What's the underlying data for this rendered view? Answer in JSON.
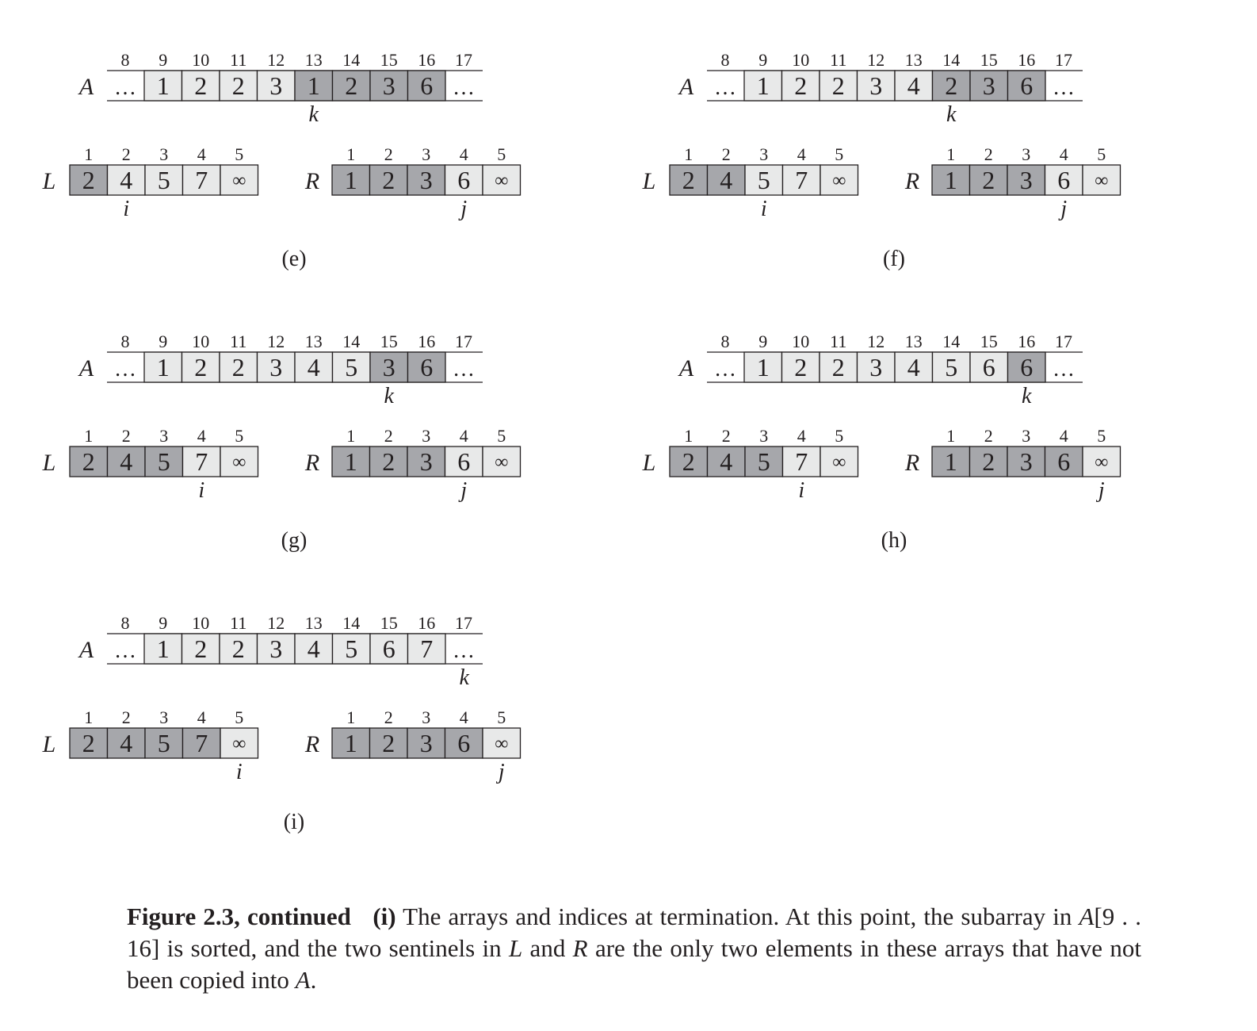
{
  "colors": {
    "dark": "#a6a7ab",
    "light": "#e8e9e9",
    "stroke": "#231f20",
    "text": "#231f20"
  },
  "panels": [
    {
      "label": "(e)",
      "a_indices": [
        "8",
        "9",
        "10",
        "11",
        "12",
        "13",
        "14",
        "15",
        "16",
        "17"
      ],
      "a_values": [
        "1",
        "2",
        "2",
        "3",
        "1",
        "2",
        "3",
        "6"
      ],
      "a_shade": [
        "light",
        "light",
        "light",
        "light",
        "dark",
        "dark",
        "dark",
        "dark"
      ],
      "l_indices": [
        "1",
        "2",
        "3",
        "4",
        "5"
      ],
      "l_values": [
        "2",
        "4",
        "5",
        "7",
        "∞"
      ],
      "l_shade": [
        "dark",
        "light",
        "light",
        "light",
        "light"
      ],
      "r_indices": [
        "1",
        "2",
        "3",
        "4",
        "5"
      ],
      "r_values": [
        "1",
        "2",
        "3",
        "6",
        "∞"
      ],
      "r_shade": [
        "dark",
        "dark",
        "dark",
        "light",
        "light"
      ],
      "k_pos": 4,
      "i_pos": 1,
      "j_pos": 3
    },
    {
      "label": "(f)",
      "a_indices": [
        "8",
        "9",
        "10",
        "11",
        "12",
        "13",
        "14",
        "15",
        "16",
        "17"
      ],
      "a_values": [
        "1",
        "2",
        "2",
        "3",
        "4",
        "2",
        "3",
        "6"
      ],
      "a_shade": [
        "light",
        "light",
        "light",
        "light",
        "light",
        "dark",
        "dark",
        "dark"
      ],
      "l_indices": [
        "1",
        "2",
        "3",
        "4",
        "5"
      ],
      "l_values": [
        "2",
        "4",
        "5",
        "7",
        "∞"
      ],
      "l_shade": [
        "dark",
        "dark",
        "light",
        "light",
        "light"
      ],
      "r_indices": [
        "1",
        "2",
        "3",
        "4",
        "5"
      ],
      "r_values": [
        "1",
        "2",
        "3",
        "6",
        "∞"
      ],
      "r_shade": [
        "dark",
        "dark",
        "dark",
        "light",
        "light"
      ],
      "k_pos": 5,
      "i_pos": 2,
      "j_pos": 3
    },
    {
      "label": "(g)",
      "a_indices": [
        "8",
        "9",
        "10",
        "11",
        "12",
        "13",
        "14",
        "15",
        "16",
        "17"
      ],
      "a_values": [
        "1",
        "2",
        "2",
        "3",
        "4",
        "5",
        "3",
        "6"
      ],
      "a_shade": [
        "light",
        "light",
        "light",
        "light",
        "light",
        "light",
        "dark",
        "dark"
      ],
      "l_indices": [
        "1",
        "2",
        "3",
        "4",
        "5"
      ],
      "l_values": [
        "2",
        "4",
        "5",
        "7",
        "∞"
      ],
      "l_shade": [
        "dark",
        "dark",
        "dark",
        "light",
        "light"
      ],
      "r_indices": [
        "1",
        "2",
        "3",
        "4",
        "5"
      ],
      "r_values": [
        "1",
        "2",
        "3",
        "6",
        "∞"
      ],
      "r_shade": [
        "dark",
        "dark",
        "dark",
        "light",
        "light"
      ],
      "k_pos": 6,
      "i_pos": 3,
      "j_pos": 3
    },
    {
      "label": "(h)",
      "a_indices": [
        "8",
        "9",
        "10",
        "11",
        "12",
        "13",
        "14",
        "15",
        "16",
        "17"
      ],
      "a_values": [
        "1",
        "2",
        "2",
        "3",
        "4",
        "5",
        "6",
        "6"
      ],
      "a_shade": [
        "light",
        "light",
        "light",
        "light",
        "light",
        "light",
        "light",
        "dark"
      ],
      "l_indices": [
        "1",
        "2",
        "3",
        "4",
        "5"
      ],
      "l_values": [
        "2",
        "4",
        "5",
        "7",
        "∞"
      ],
      "l_shade": [
        "dark",
        "dark",
        "dark",
        "light",
        "light"
      ],
      "r_indices": [
        "1",
        "2",
        "3",
        "4",
        "5"
      ],
      "r_values": [
        "1",
        "2",
        "3",
        "6",
        "∞"
      ],
      "r_shade": [
        "dark",
        "dark",
        "dark",
        "dark",
        "light"
      ],
      "k_pos": 7,
      "i_pos": 3,
      "j_pos": 4
    },
    {
      "label": "(i)",
      "a_indices": [
        "8",
        "9",
        "10",
        "11",
        "12",
        "13",
        "14",
        "15",
        "16",
        "17"
      ],
      "a_values": [
        "1",
        "2",
        "2",
        "3",
        "4",
        "5",
        "6",
        "7"
      ],
      "a_shade": [
        "light",
        "light",
        "light",
        "light",
        "light",
        "light",
        "light",
        "light"
      ],
      "l_indices": [
        "1",
        "2",
        "3",
        "4",
        "5"
      ],
      "l_values": [
        "2",
        "4",
        "5",
        "7",
        "∞"
      ],
      "l_shade": [
        "dark",
        "dark",
        "dark",
        "dark",
        "light"
      ],
      "r_indices": [
        "1",
        "2",
        "3",
        "4",
        "5"
      ],
      "r_values": [
        "1",
        "2",
        "3",
        "6",
        "∞"
      ],
      "r_shade": [
        "dark",
        "dark",
        "dark",
        "dark",
        "light"
      ],
      "k_pos": 8,
      "i_pos": 4,
      "j_pos": 4
    }
  ],
  "text": {
    "array_a": "A",
    "array_l": "L",
    "array_r": "R",
    "ellipsis": "…",
    "k": "k",
    "i": "i",
    "j": "j"
  },
  "caption": {
    "figure_label": "Figure 2.3, continued",
    "part_label": "(i)",
    "t1": " The arrays and indices at termination.  At this point, the subarray in ",
    "a_var": "A",
    "range": "[9 . . 16]",
    "t2": " is sorted, and the two sentinels in ",
    "l_var": "L",
    "t3": " and ",
    "r_var": "R",
    "t4": " are the only two elements in these arrays that have not been copied into ",
    "a_var2": "A",
    "t5": "."
  }
}
